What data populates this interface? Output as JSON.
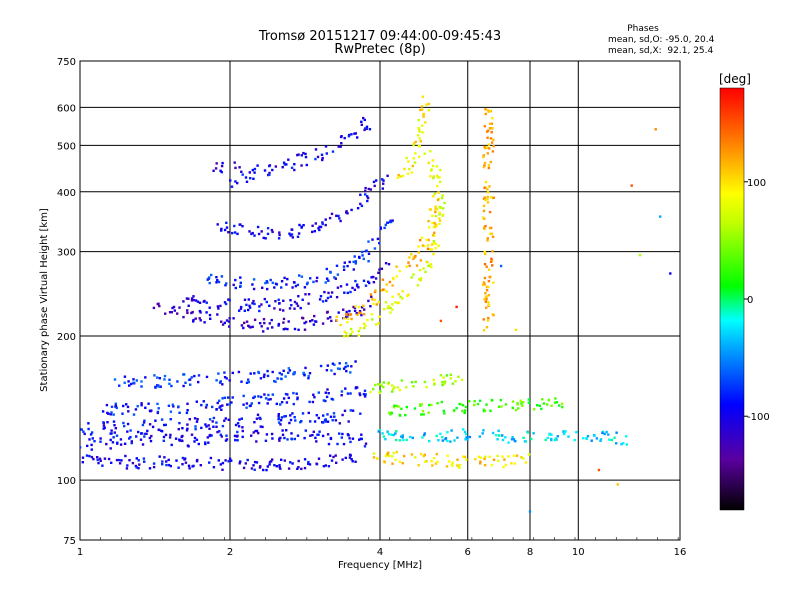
{
  "header": {
    "title_line1": "Tromsø 20151217 09:44:00-09:45:43",
    "title_line2": "RwPretec (8p)"
  },
  "phase_box": {
    "heading": "Phases",
    "line_o": "mean, sd,O: -95.0, 20.4",
    "line_x": "mean, sd,X:  92.1, 25.4"
  },
  "chart_data": {
    "type": "scatter",
    "xlabel": "Frequency [MHz]",
    "ylabel": "Stationary phase Virtual Height [km]",
    "x_scale": "log",
    "y_scale": "log",
    "xlim": [
      1,
      16
    ],
    "ylim": [
      75,
      750
    ],
    "x_ticks": [
      1,
      2,
      4,
      6,
      8,
      10,
      16
    ],
    "y_ticks": [
      75,
      100,
      200,
      300,
      400,
      500,
      600,
      750
    ],
    "grid": true,
    "colorbar": {
      "label": "[deg]",
      "range": [
        -180,
        180
      ],
      "ticks": [
        100,
        0,
        -100
      ]
    },
    "series": [
      {
        "path": [
          [
            1.0,
            110
          ],
          [
            1.15,
            109
          ],
          [
            1.4,
            109
          ],
          [
            1.8,
            108
          ],
          [
            2.4,
            108
          ],
          [
            3.0,
            109
          ],
          [
            3.6,
            110
          ]
        ],
        "phase": -100
      },
      {
        "path": [
          [
            1.0,
            118
          ],
          [
            1.3,
            122
          ],
          [
            1.6,
            121
          ],
          [
            2.0,
            124
          ],
          [
            2.6,
            124
          ],
          [
            3.3,
            122
          ],
          [
            3.8,
            121
          ]
        ],
        "phase": -95
      },
      {
        "path": [
          [
            1.0,
            128
          ],
          [
            1.4,
            130
          ],
          [
            2.0,
            132
          ],
          [
            2.8,
            134
          ],
          [
            3.6,
            136
          ]
        ],
        "phase": -90
      },
      {
        "path": [
          [
            1.1,
            140
          ],
          [
            1.6,
            142
          ],
          [
            2.2,
            146
          ],
          [
            3.0,
            150
          ],
          [
            3.8,
            155
          ]
        ],
        "phase": -85
      },
      {
        "path": [
          [
            1.2,
            160
          ],
          [
            1.8,
            162
          ],
          [
            2.6,
            166
          ],
          [
            3.6,
            172
          ]
        ],
        "phase": -80
      },
      {
        "path": [
          [
            1.4,
            228
          ],
          [
            1.7,
            220
          ],
          [
            2.0,
            212
          ],
          [
            2.4,
            210
          ],
          [
            2.8,
            212
          ],
          [
            3.2,
            218
          ],
          [
            3.6,
            226
          ],
          [
            3.9,
            236
          ]
        ],
        "phase": -115
      },
      {
        "path": [
          [
            1.6,
            238
          ],
          [
            2.0,
            232
          ],
          [
            2.5,
            232
          ],
          [
            3.0,
            240
          ],
          [
            3.5,
            252
          ],
          [
            3.9,
            266
          ],
          [
            4.1,
            280
          ]
        ],
        "phase": -100
      },
      {
        "path": [
          [
            1.8,
            262
          ],
          [
            2.2,
            256
          ],
          [
            2.7,
            258
          ],
          [
            3.2,
            268
          ],
          [
            3.7,
            290
          ],
          [
            4.0,
            318
          ],
          [
            4.2,
            350
          ]
        ],
        "phase": -85
      },
      {
        "path": [
          [
            1.9,
            340
          ],
          [
            2.2,
            330
          ],
          [
            2.6,
            328
          ],
          [
            3.0,
            340
          ],
          [
            3.5,
            365
          ],
          [
            3.8,
            395
          ],
          [
            4.1,
            430
          ]
        ],
        "phase": -100
      },
      {
        "path": [
          [
            2.0,
            420
          ],
          [
            2.3,
            440
          ],
          [
            2.7,
            460
          ],
          [
            3.1,
            485
          ],
          [
            3.5,
            520
          ],
          [
            3.8,
            560
          ]
        ],
        "phase": -95
      },
      {
        "path": [
          [
            1.85,
            450
          ],
          [
            2.05,
            455
          ]
        ],
        "phase": -110
      },
      {
        "path": [
          [
            3.4,
            200
          ],
          [
            3.8,
            212
          ],
          [
            4.2,
            230
          ],
          [
            4.6,
            255
          ],
          [
            5.0,
            285
          ],
          [
            5.2,
            330
          ],
          [
            5.3,
            380
          ],
          [
            5.2,
            430
          ],
          [
            5.0,
            480
          ]
        ],
        "phase": 80
      },
      {
        "path": [
          [
            3.2,
            215
          ],
          [
            3.6,
            225
          ],
          [
            4.0,
            245
          ],
          [
            4.4,
            270
          ],
          [
            4.8,
            300
          ],
          [
            5.1,
            340
          ],
          [
            5.2,
            390
          ]
        ],
        "phase": 110
      },
      {
        "path": [
          [
            4.4,
            420
          ],
          [
            4.6,
            460
          ],
          [
            4.8,
            520
          ],
          [
            4.9,
            580
          ],
          [
            4.9,
            630
          ]
        ],
        "phase": 90
      },
      {
        "path": [
          [
            3.8,
            112
          ],
          [
            4.5,
            111
          ],
          [
            5.2,
            110
          ],
          [
            6.0,
            109
          ],
          [
            7.0,
            109
          ],
          [
            8.0,
            110
          ]
        ],
        "phase": 100
      },
      {
        "path": [
          [
            4.0,
            125
          ],
          [
            5.0,
            124
          ],
          [
            6.0,
            124
          ],
          [
            7.5,
            123
          ],
          [
            9.0,
            123
          ],
          [
            11.0,
            123
          ],
          [
            12.5,
            122
          ]
        ],
        "phase": -30
      },
      {
        "path": [
          [
            4.2,
            140
          ],
          [
            5.5,
            142
          ],
          [
            7.0,
            143
          ],
          [
            8.5,
            144
          ],
          [
            9.5,
            145
          ]
        ],
        "phase": 30
      },
      {
        "path": [
          [
            3.8,
            155
          ],
          [
            4.8,
            160
          ],
          [
            5.8,
            162
          ]
        ],
        "phase": 60
      },
      {
        "path": [
          [
            6.6,
            620
          ],
          [
            6.6,
            520
          ],
          [
            6.6,
            420
          ],
          [
            6.6,
            330
          ],
          [
            6.6,
            250
          ],
          [
            6.6,
            200
          ]
        ],
        "phase": 120
      }
    ],
    "extra_points": [
      {
        "x": 12.8,
        "y": 412,
        "phase": 150
      },
      {
        "x": 14.3,
        "y": 540,
        "phase": 130
      },
      {
        "x": 15.3,
        "y": 270,
        "phase": -100
      },
      {
        "x": 14.6,
        "y": 355,
        "phase": -40
      },
      {
        "x": 11.0,
        "y": 105,
        "phase": 150
      },
      {
        "x": 8.0,
        "y": 86,
        "phase": -50
      },
      {
        "x": 12.0,
        "y": 98,
        "phase": 110
      },
      {
        "x": 13.3,
        "y": 295,
        "phase": 60
      },
      {
        "x": 5.3,
        "y": 215,
        "phase": 150
      },
      {
        "x": 5.7,
        "y": 230,
        "phase": 170
      },
      {
        "x": 7.0,
        "y": 280,
        "phase": -60
      },
      {
        "x": 7.5,
        "y": 206,
        "phase": 100
      }
    ]
  },
  "colors": {
    "grid": "#000000",
    "background": "#ffffff"
  }
}
